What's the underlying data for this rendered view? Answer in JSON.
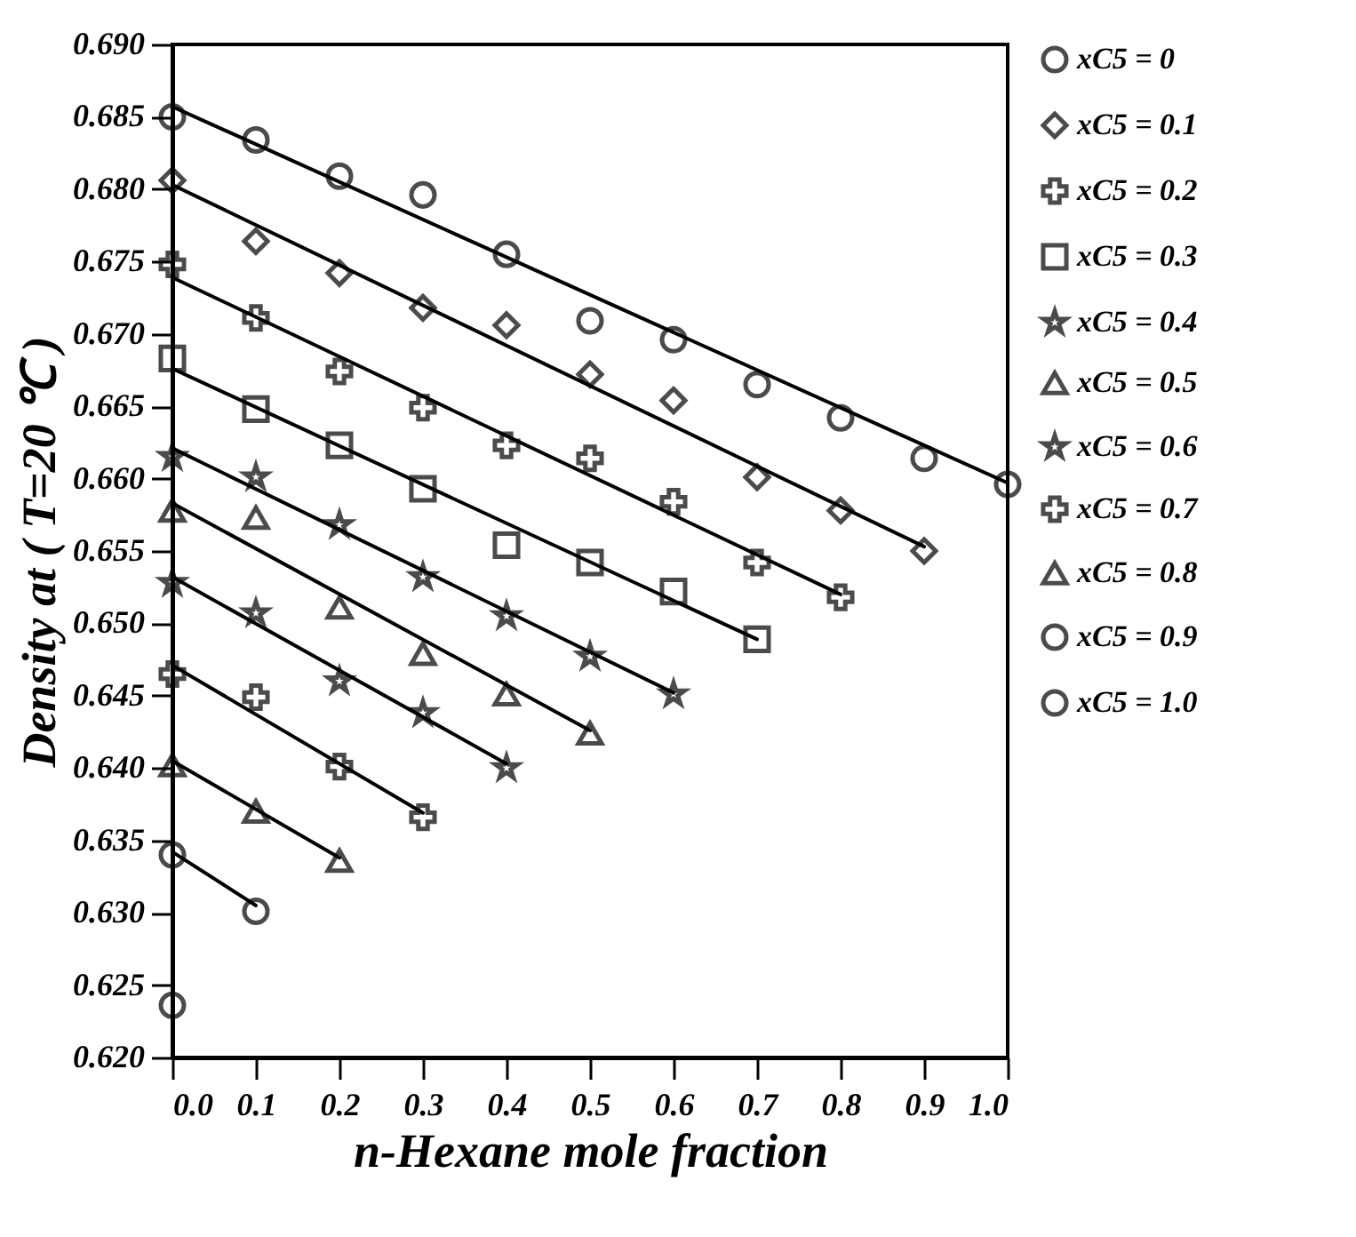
{
  "chart_data": {
    "type": "scatter",
    "xlabel": "n-Hexane mole fraction",
    "ylabel": "Density at ( T=20 ℃ )",
    "xlim": [
      0,
      1.0
    ],
    "ylim": [
      0.62,
      0.69
    ],
    "xticks": [
      {
        "value": 0,
        "label": "0.0"
      },
      0.1,
      0.2,
      0.3,
      0.4,
      0.5,
      0.6,
      0.7,
      0.8,
      0.9,
      {
        "value": 1.0,
        "label": "1.0"
      }
    ],
    "yticks": [
      {
        "value": 0.62,
        "label": "0.620"
      },
      0.625,
      {
        "value": 0.63,
        "label": "0.630"
      },
      0.635,
      {
        "value": 0.64,
        "label": "0.640"
      },
      0.645,
      {
        "value": 0.65,
        "label": "0.650"
      },
      0.655,
      {
        "value": 0.66,
        "label": "0.660"
      },
      0.665,
      {
        "value": 0.67,
        "label": "0.670"
      },
      0.675,
      {
        "value": 0.68,
        "label": "0.680"
      },
      0.685,
      {
        "value": 0.69,
        "label": "0.690"
      }
    ],
    "grid": false,
    "legend": "right",
    "series": [
      {
        "name": "xC5 = 0",
        "type": "scatter",
        "marker": "circle",
        "color": "#000000",
        "x": [
          0,
          0.1,
          0.2,
          0.3,
          0.4,
          0.5,
          0.6,
          0.7,
          0.8,
          0.9,
          1.0
        ],
        "values": [
          0.685,
          0.6834,
          0.6809,
          0.6796,
          0.6755,
          0.6709,
          0.6696,
          0.6665,
          0.6642,
          0.6614,
          0.6596
        ]
      },
      {
        "name": "xC5 = 0.1",
        "type": "scatter",
        "marker": "diamond",
        "color": "#000000",
        "x": [
          0,
          0.1,
          0.2,
          0.3,
          0.4,
          0.5,
          0.6,
          0.7,
          0.8,
          0.9
        ],
        "values": [
          0.6806,
          0.6764,
          0.6742,
          0.6718,
          0.6706,
          0.6672,
          0.6654,
          0.6601,
          0.6578,
          0.655
        ]
      },
      {
        "name": "xC5 = 0.2",
        "type": "scatter",
        "marker": "cross",
        "color": "#000000",
        "x": [
          0,
          0.1,
          0.2,
          0.3,
          0.4,
          0.5,
          0.6,
          0.7,
          0.8
        ],
        "values": [
          0.6748,
          0.6711,
          0.6674,
          0.6649,
          0.6623,
          0.6614,
          0.6584,
          0.6542,
          0.6518
        ]
      },
      {
        "name": "xC5 = 0.3",
        "type": "scatter",
        "marker": "square",
        "color": "#000000",
        "x": [
          0,
          0.1,
          0.2,
          0.3,
          0.4,
          0.5,
          0.6,
          0.7
        ],
        "values": [
          0.6683,
          0.6648,
          0.6623,
          0.6593,
          0.6554,
          0.6542,
          0.6522,
          0.6489
        ]
      },
      {
        "name": "xC5 = 0.4",
        "type": "scatter",
        "marker": "star",
        "color": "#000000",
        "x": [
          0,
          0.1,
          0.2,
          0.3,
          0.4,
          0.5,
          0.6
        ],
        "values": [
          0.6615,
          0.6601,
          0.6568,
          0.6532,
          0.6505,
          0.6477,
          0.6451
        ]
      },
      {
        "name": "xC5 = 0.5",
        "type": "scatter",
        "marker": "triangle",
        "color": "#000000",
        "x": [
          0,
          0.1,
          0.2,
          0.3,
          0.4,
          0.5
        ],
        "values": [
          0.6578,
          0.6573,
          0.6511,
          0.6479,
          0.6451,
          0.6424
        ]
      },
      {
        "name": "xC5 = 0.6",
        "type": "scatter",
        "marker": "star",
        "color": "#000000",
        "x": [
          0,
          0.1,
          0.2,
          0.3,
          0.4
        ],
        "values": [
          0.6528,
          0.6507,
          0.646,
          0.6438,
          0.64
        ]
      },
      {
        "name": "xC5 = 0.7",
        "type": "scatter",
        "marker": "cross",
        "color": "#000000",
        "x": [
          0,
          0.1,
          0.2,
          0.3
        ],
        "values": [
          0.6465,
          0.6449,
          0.6401,
          0.6366
        ]
      },
      {
        "name": "xC5 = 0.8",
        "type": "scatter",
        "marker": "triangle",
        "color": "#000000",
        "x": [
          0,
          0.1,
          0.2
        ],
        "values": [
          0.6402,
          0.637,
          0.6336
        ]
      },
      {
        "name": "xC5 = 0.9",
        "type": "scatter",
        "marker": "circle",
        "color": "#000000",
        "x": [
          0,
          0.1
        ],
        "values": [
          0.634,
          0.6301
        ]
      },
      {
        "name": "xC5 = 1.0",
        "type": "scatter",
        "marker": "circle",
        "color": "#000000",
        "x": [
          0
        ],
        "values": [
          0.6236
        ]
      },
      {
        "type": "line",
        "line_style": "solid",
        "color": "#000000",
        "x": [
          0,
          1.0
        ],
        "values": [
          0.6857,
          0.6597
        ]
      },
      {
        "type": "line",
        "line_style": "solid",
        "color": "#000000",
        "x": [
          0,
          0.9
        ],
        "values": [
          0.6803,
          0.6553
        ]
      },
      {
        "type": "line",
        "line_style": "solid",
        "color": "#000000",
        "x": [
          0,
          0.8
        ],
        "values": [
          0.6739,
          0.652
        ]
      },
      {
        "type": "line",
        "line_style": "solid",
        "color": "#000000",
        "x": [
          0,
          0.7
        ],
        "values": [
          0.6676,
          0.6489
        ]
      },
      {
        "type": "line",
        "line_style": "solid",
        "color": "#000000",
        "x": [
          0,
          0.6
        ],
        "values": [
          0.6621,
          0.6452
        ]
      },
      {
        "type": "line",
        "line_style": "solid",
        "color": "#000000",
        "x": [
          0,
          0.5
        ],
        "values": [
          0.6583,
          0.6426
        ]
      },
      {
        "type": "line",
        "line_style": "solid",
        "color": "#000000",
        "x": [
          0,
          0.4
        ],
        "values": [
          0.6532,
          0.6403
        ]
      },
      {
        "type": "line",
        "line_style": "solid",
        "color": "#000000",
        "x": [
          0,
          0.3
        ],
        "values": [
          0.6471,
          0.6369
        ]
      },
      {
        "type": "line",
        "line_style": "solid",
        "color": "#000000",
        "x": [
          0,
          0.2
        ],
        "values": [
          0.6405,
          0.6338
        ]
      },
      {
        "type": "line",
        "line_style": "solid",
        "color": "#000000",
        "x": [
          0,
          0.1
        ],
        "values": [
          0.6342,
          0.6305
        ]
      }
    ]
  }
}
